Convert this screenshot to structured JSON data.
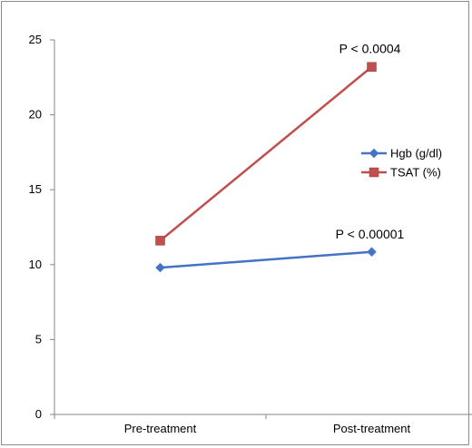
{
  "chart_data": {
    "type": "line",
    "categories": [
      "Pre-treatment",
      "Post-treatment"
    ],
    "series": [
      {
        "name": "Hgb (g/dl)",
        "values": [
          9.8,
          10.85
        ],
        "color": "#4472C4",
        "marker": "diamond"
      },
      {
        "name": "TSAT (%)",
        "values": [
          11.6,
          23.2
        ],
        "color": "#C0504D",
        "marker": "square"
      }
    ],
    "ylim": [
      0,
      25
    ],
    "yticks": [
      0,
      5,
      10,
      15,
      20,
      25
    ],
    "annotations": [
      {
        "text": "P < 0.0004",
        "series": 1,
        "point": 1
      },
      {
        "text": "P < 0.00001",
        "series": 0,
        "point": 1
      }
    ],
    "legend_position": "right",
    "grid": false
  }
}
